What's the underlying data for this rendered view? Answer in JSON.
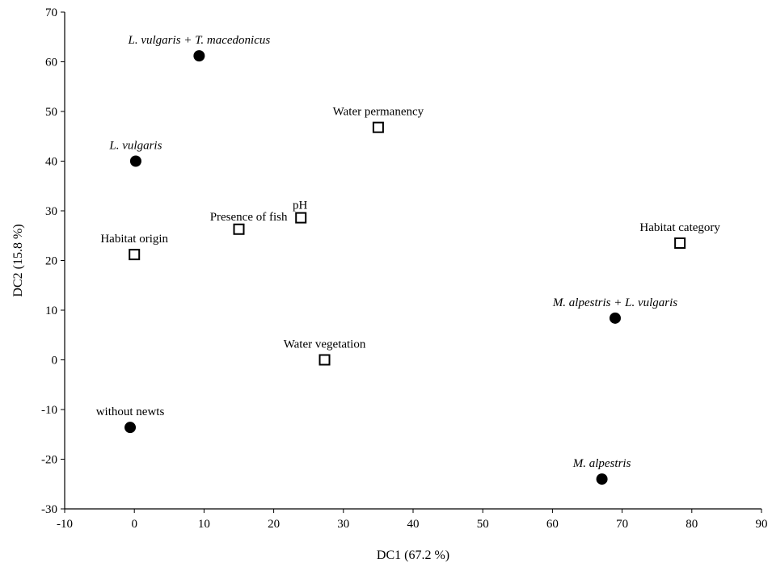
{
  "chart_data": {
    "type": "scatter",
    "title": "",
    "xlabel": "DC1 (67.2 %)",
    "ylabel": "DC2 (15.8 %)",
    "xlim": [
      -10,
      90
    ],
    "ylim": [
      -30,
      70
    ],
    "xticks": [
      -10,
      0,
      10,
      20,
      30,
      40,
      50,
      60,
      70,
      80,
      90
    ],
    "yticks": [
      -30,
      -20,
      -10,
      0,
      10,
      20,
      30,
      40,
      50,
      60,
      70
    ],
    "grid": false,
    "series": [
      {
        "marker": "filled-circle",
        "color": "#000000",
        "points": [
          {
            "label": "L. vulgaris + T. macedonicus",
            "x": 9.3,
            "y": 61.2,
            "italic": true
          },
          {
            "label": "L. vulgaris",
            "x": 0.2,
            "y": 40.0,
            "italic": true
          },
          {
            "label": "M. alpestris + L. vulgaris",
            "x": 69.0,
            "y": 8.4,
            "italic": true
          },
          {
            "label": "without newts",
            "x": -0.6,
            "y": -13.6,
            "italic": false
          },
          {
            "label": "M. alpestris",
            "x": 67.1,
            "y": -24.0,
            "italic": true
          }
        ]
      },
      {
        "marker": "open-square",
        "color": "#000000",
        "points": [
          {
            "label": "Water permanency",
            "x": 35.0,
            "y": 46.8,
            "italic": false
          },
          {
            "label": "pH",
            "x": 23.9,
            "y": 28.6,
            "italic": false
          },
          {
            "label": "Presence of fish",
            "x": 15.0,
            "y": 26.3,
            "italic": false
          },
          {
            "label": "Habitat origin",
            "x": 0.0,
            "y": 21.2,
            "italic": false
          },
          {
            "label": "Habitat category",
            "x": 78.3,
            "y": 23.5,
            "italic": false
          },
          {
            "label": "Water vegetation",
            "x": 27.3,
            "y": 0.0,
            "italic": false
          }
        ]
      }
    ]
  }
}
